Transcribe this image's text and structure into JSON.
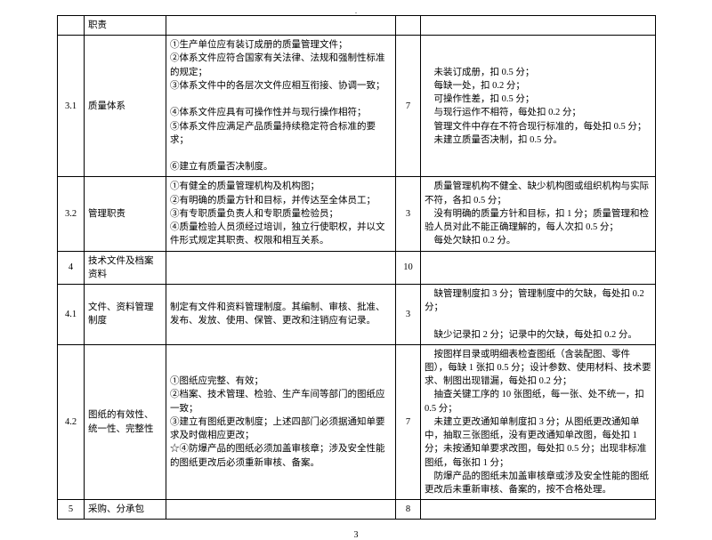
{
  "rows": [
    {
      "num": "",
      "name": "职责",
      "desc": "",
      "score": "",
      "dedu": ""
    },
    {
      "num": "3.1",
      "name": "质量体系",
      "desc": "①生产单位应有装订成册的质量管理文件；\n②体系文件应符合国家有关法律、法规和强制性标准的规定；\n③体系文件中的各层次文件应相互衔接、协调一致；\n\n④体系文件应具有可操作性并与现行操作相符；\n⑤体系文件应满足产品质量持续稳定符合标准的要求；\n\n⑥建立有质量否决制度。",
      "score": "7",
      "dedu": "　未装订成册，扣 0.5 分；\n　每缺一处，扣 0.2 分；\n　可操作性差，扣 0.5 分；\n　与现行运作不相符，每处扣 0.2 分；\n　管理文件中存在不符合现行标准的，每处扣 0.5 分；\n　未建立质量否决制，扣 0.5 分。"
    },
    {
      "num": "3.2",
      "name": "管理职责",
      "desc": "①有健全的质量管理机构及机构图；\n②有明确的质量方针和目标，并传达至全体员工；\n③有专职质量负责人和专职质量检验员；\n④质量检验人员须经过培训，独立行使职权，并以文件形式规定其职责、权限和相互关系。",
      "score": "3",
      "dedu": "　质量管理机构不健全、缺少机构图或组织机构与实际不符，各扣 0.5 分；\n　没有明确的质量方针和目标，扣 1 分；质量管理和检验人员对此不能正确理解的，每人次扣 0.5 分；\n　每处欠缺扣 0.2 分。"
    },
    {
      "num": "4",
      "name": "技术文件及档案资料",
      "desc": "",
      "score": "10",
      "dedu": ""
    },
    {
      "num": "4.1",
      "name": "文件、资料管理制度",
      "desc": "制定有文件和资料管理制度。其编制、审核、批准、发布、发放、使用、保管、更改和注销应有记录。",
      "score": "3",
      "dedu": "　缺管理制度扣 3 分；管理制度中的欠缺，每处扣 0.2 分；\n\n　缺少记录扣 2 分；记录中的欠缺，每处扣 0.2 分。"
    },
    {
      "num": "4.2",
      "name": "图纸的有效性、统一性、完整性",
      "desc": "①图纸应完整、有效；\n②档案、技术管理、检验、生产车间等部门的图纸应一致；\n③建立有图纸更改制度；上述四部门必须据通知单要求及时做相应更改；\n☆④防爆产品的图纸必须加盖审核章；涉及安全性能的图纸更改后必须重新审核、备案。",
      "score": "7",
      "dedu": "　按图样目录或明细表检查图纸（含装配图、零件图），每缺 1 张扣 0.5 分；设计参数、使用材料、技术要求、制图出现错漏，每处扣 0.2 分；\n　抽查关键工序的 10 张图纸，每一张、处不统一，扣 0.5 分；\n　未建立更改通知单制度扣 3 分；从图纸更改通知单中，抽取三张图纸，没有更改通知单改图，每处扣 1 分；未按通知单要求改图，每处扣 0.5 分；出现非标准图纸，每张扣 1 分；\n　防爆产品的图纸未加盖审核章或涉及安全性能的图纸更改后未重新审核、备案的，按不合格处理。"
    },
    {
      "num": "5",
      "name": "采购、分承包",
      "desc": "",
      "score": "8",
      "dedu": ""
    }
  ],
  "pageno": "3"
}
